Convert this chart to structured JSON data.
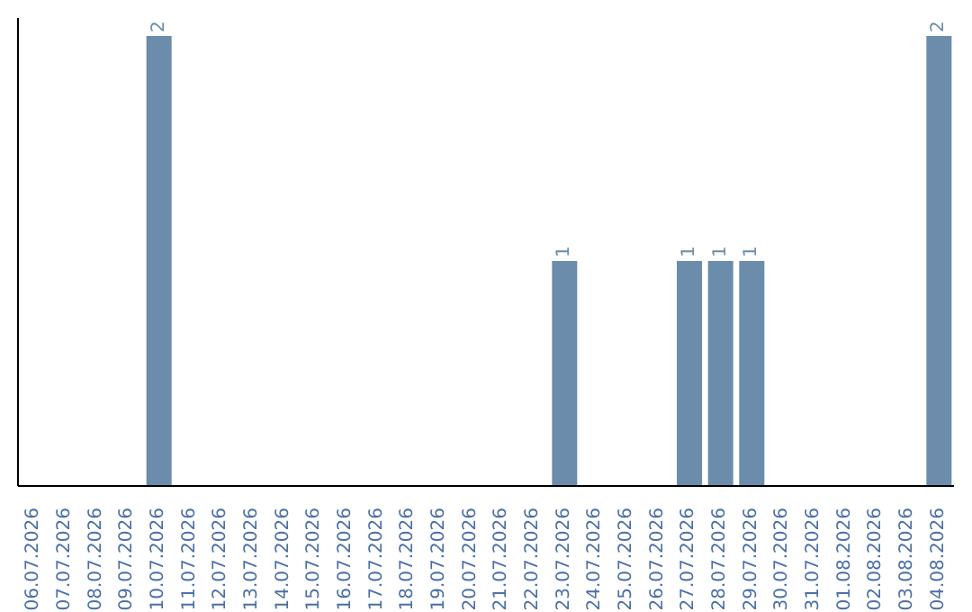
{
  "chart_data": {
    "type": "bar",
    "categories": [
      "06.07.2026",
      "07.07.2026",
      "08.07.2026",
      "09.07.2026",
      "10.07.2026",
      "11.07.2026",
      "12.07.2026",
      "13.07.2026",
      "14.07.2026",
      "15.07.2026",
      "16.07.2026",
      "17.07.2026",
      "18.07.2026",
      "19.07.2026",
      "20.07.2026",
      "21.07.2026",
      "22.07.2026",
      "23.07.2026",
      "24.07.2026",
      "25.07.2026",
      "26.07.2026",
      "27.07.2026",
      "28.07.2026",
      "29.07.2026",
      "30.07.2026",
      "31.07.2026",
      "01.08.2026",
      "02.08.2026",
      "03.08.2026",
      "04.08.2026"
    ],
    "values": [
      0,
      0,
      0,
      0,
      2,
      0,
      0,
      0,
      0,
      0,
      0,
      0,
      0,
      0,
      0,
      0,
      0,
      1,
      0,
      0,
      0,
      1,
      1,
      1,
      0,
      0,
      0,
      0,
      0,
      2
    ],
    "value_labels": [
      null,
      null,
      null,
      null,
      "2",
      null,
      null,
      null,
      null,
      null,
      null,
      null,
      null,
      null,
      null,
      null,
      null,
      "1",
      null,
      null,
      null,
      "1",
      "1",
      "1",
      null,
      null,
      null,
      null,
      null,
      "2"
    ],
    "color": "#6b8cab",
    "tick_labels": "x",
    "grid": false,
    "legend": false
  }
}
